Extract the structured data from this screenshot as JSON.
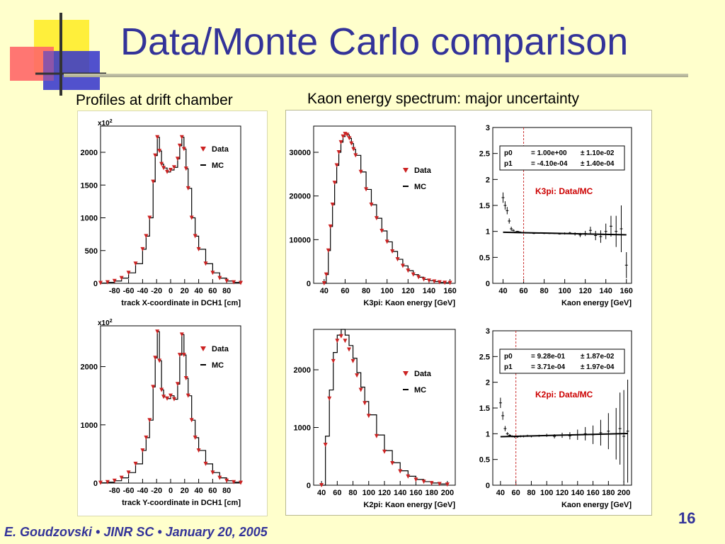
{
  "slide": {
    "title": "Data/Monte Carlo comparison",
    "left_heading": "Profiles at drift chamber",
    "right_heading": "Kaon energy spectrum: major uncertainty",
    "footer": "E. Goudzovski • JINR SC • January 20, 2005",
    "number": "16",
    "colors": {
      "background": "#ffffcc",
      "title": "#333399",
      "data_marker": "#cc2222",
      "mc_line": "#000000",
      "ratio_label": "#cc0000"
    }
  },
  "chart_data": [
    {
      "type": "line",
      "id": "x-profile",
      "xlabel": "track X-coordinate in DCH1 [cm]",
      "exponent": "x10",
      "xlim": [
        -100,
        100
      ],
      "ylim": [
        0,
        2400
      ],
      "xticks": [
        -80,
        -60,
        -40,
        -20,
        0,
        20,
        40,
        60,
        80
      ],
      "yticks": [
        0,
        500,
        1000,
        1500,
        2000
      ],
      "legend": [
        "Data",
        "MC"
      ],
      "x": [
        -100,
        -90,
        -80,
        -70,
        -60,
        -50,
        -40,
        -35,
        -30,
        -25,
        -22,
        -19,
        -16,
        -13,
        -10,
        -5,
        0,
        5,
        10,
        13,
        16,
        19,
        22,
        25,
        30,
        35,
        40,
        50,
        60,
        70,
        80,
        90,
        100
      ],
      "series": [
        {
          "name": "Data",
          "values": [
            5,
            15,
            35,
            80,
            160,
            300,
            520,
            720,
            1000,
            1550,
            1950,
            2230,
            2020,
            1820,
            1760,
            1700,
            1730,
            1770,
            1900,
            2100,
            2230,
            2050,
            1750,
            1450,
            1000,
            720,
            520,
            300,
            160,
            80,
            35,
            15,
            5
          ]
        },
        {
          "name": "MC",
          "values": [
            5,
            15,
            35,
            80,
            160,
            300,
            520,
            720,
            1000,
            1550,
            1950,
            2230,
            2020,
            1820,
            1760,
            1700,
            1730,
            1770,
            1900,
            2100,
            2230,
            2050,
            1750,
            1450,
            1000,
            720,
            520,
            300,
            160,
            80,
            35,
            15,
            5
          ]
        }
      ]
    },
    {
      "type": "line",
      "id": "y-profile",
      "xlabel": "track Y-coordinate in DCH1 [cm]",
      "exponent": "x10",
      "xlim": [
        -100,
        100
      ],
      "ylim": [
        0,
        2700
      ],
      "xticks": [
        -80,
        -60,
        -40,
        -20,
        0,
        20,
        40,
        60,
        80
      ],
      "yticks": [
        0,
        1000,
        2000
      ],
      "legend": [
        "Data",
        "MC"
      ],
      "x": [
        -100,
        -90,
        -80,
        -70,
        -60,
        -50,
        -40,
        -35,
        -30,
        -25,
        -22,
        -19,
        -16,
        -13,
        -10,
        -5,
        0,
        5,
        10,
        13,
        16,
        19,
        22,
        25,
        30,
        35,
        40,
        50,
        60,
        70,
        80,
        90,
        100
      ],
      "series": [
        {
          "name": "Data",
          "values": [
            5,
            15,
            40,
            90,
            180,
            330,
            560,
            780,
            1080,
            1650,
            2150,
            2600,
            2100,
            1600,
            1480,
            1450,
            1500,
            1440,
            1700,
            2200,
            2550,
            2200,
            1800,
            1500,
            1080,
            780,
            560,
            330,
            180,
            90,
            40,
            15,
            5
          ]
        },
        {
          "name": "MC",
          "values": [
            5,
            15,
            40,
            90,
            180,
            330,
            560,
            780,
            1080,
            1650,
            2150,
            2600,
            2100,
            1600,
            1480,
            1450,
            1500,
            1440,
            1700,
            2200,
            2550,
            2200,
            1800,
            1500,
            1080,
            780,
            560,
            330,
            180,
            90,
            40,
            15,
            5
          ]
        }
      ]
    },
    {
      "type": "line",
      "id": "k3pi-spectrum",
      "xlabel": "K3pi: Kaon energy [GeV]",
      "xlim": [
        30,
        165
      ],
      "ylim": [
        0,
        36000
      ],
      "xticks": [
        40,
        60,
        80,
        100,
        120,
        140,
        160
      ],
      "yticks": [
        0,
        10000,
        20000,
        30000
      ],
      "legend": [
        "Data",
        "MC"
      ],
      "x": [
        40,
        42,
        44,
        46,
        48,
        50,
        52,
        54,
        56,
        58,
        60,
        62,
        64,
        66,
        68,
        70,
        75,
        80,
        85,
        90,
        95,
        100,
        105,
        110,
        115,
        120,
        125,
        130,
        135,
        140,
        145,
        150,
        155,
        160
      ],
      "series": [
        {
          "name": "Data",
          "values": [
            0,
            2000,
            7500,
            13000,
            18000,
            23000,
            27000,
            30000,
            32300,
            33600,
            34200,
            34000,
            33200,
            32000,
            30700,
            29300,
            25500,
            21500,
            18000,
            14900,
            12000,
            9500,
            7300,
            5500,
            4000,
            2900,
            2000,
            1400,
            900,
            600,
            400,
            230,
            130,
            80
          ]
        },
        {
          "name": "MC",
          "values": [
            0,
            2000,
            7500,
            13000,
            18000,
            23000,
            27000,
            30000,
            32300,
            33600,
            34200,
            34000,
            33200,
            32000,
            30700,
            29300,
            25500,
            21500,
            18000,
            14900,
            12000,
            9500,
            7300,
            5500,
            4000,
            2900,
            2000,
            1400,
            900,
            600,
            400,
            230,
            130,
            80
          ]
        }
      ]
    },
    {
      "type": "scatter",
      "id": "k3pi-ratio",
      "xlabel": "Kaon energy [GeV]",
      "annotation": "K3pi: Data/MC",
      "fit": [
        {
          "name": "p0",
          "value": "= 1.00e+00",
          "error": "1.10e-02"
        },
        {
          "name": "p1",
          "value": "= -4.10e-04",
          "error": "1.40e-04"
        }
      ],
      "cut": 60,
      "xlim": [
        30,
        165
      ],
      "ylim": [
        0,
        3
      ],
      "xticks": [
        40,
        60,
        80,
        100,
        120,
        140,
        160
      ],
      "yticks": [
        0,
        0.5,
        1,
        1.5,
        2,
        2.5,
        3
      ],
      "ytick_labels": [
        "0",
        "0.5",
        "1",
        "1.5",
        "2",
        "2.5",
        "3"
      ],
      "x": [
        40,
        42,
        44,
        46,
        48,
        50,
        52,
        54,
        56,
        58,
        60,
        62,
        66,
        70,
        75,
        80,
        85,
        90,
        95,
        100,
        105,
        110,
        115,
        120,
        125,
        130,
        135,
        140,
        145,
        150,
        155,
        160
      ],
      "y": [
        1.65,
        1.5,
        1.4,
        1.2,
        1.05,
        1.02,
        0.99,
        1.0,
        0.99,
        0.98,
        0.98,
        0.97,
        0.97,
        0.96,
        0.97,
        0.96,
        0.96,
        0.96,
        0.95,
        0.96,
        0.97,
        0.95,
        0.93,
        0.96,
        1.02,
        0.92,
        0.9,
        1.0,
        1.1,
        1.0,
        1.05,
        0.35
      ],
      "yerr": [
        0.1,
        0.08,
        0.07,
        0.05,
        0.04,
        0.02,
        0.01,
        0.01,
        0.01,
        0.01,
        0.01,
        0.01,
        0.01,
        0.01,
        0.01,
        0.01,
        0.01,
        0.01,
        0.01,
        0.02,
        0.02,
        0.03,
        0.04,
        0.05,
        0.07,
        0.09,
        0.12,
        0.15,
        0.2,
        0.3,
        0.45,
        0.25
      ],
      "fit_line": [
        [
          40,
          0.984
        ],
        [
          160,
          0.934
        ]
      ]
    },
    {
      "type": "line",
      "id": "k2pi-spectrum",
      "xlabel": "K2pi: Kaon energy [GeV]",
      "xlim": [
        30,
        210
      ],
      "ylim": [
        0,
        2700
      ],
      "xticks": [
        40,
        60,
        80,
        100,
        120,
        140,
        160,
        180,
        200
      ],
      "yticks": [
        0,
        1000,
        2000
      ],
      "legend": [
        "Data",
        "MC"
      ],
      "x": [
        40,
        45,
        50,
        55,
        60,
        65,
        70,
        75,
        80,
        85,
        90,
        95,
        100,
        110,
        120,
        130,
        140,
        150,
        160,
        170,
        180,
        190,
        200
      ],
      "series": [
        {
          "name": "Data",
          "values": [
            0,
            700,
            1500,
            2150,
            2500,
            2580,
            2500,
            2350,
            2150,
            1900,
            1650,
            1420,
            1200,
            850,
            580,
            380,
            240,
            150,
            95,
            60,
            35,
            20,
            10
          ]
        },
        {
          "name": "MC",
          "values": [
            0,
            850,
            1650,
            2300,
            2600,
            2700,
            2600,
            2420,
            2200,
            1950,
            1700,
            1450,
            1220,
            870,
            600,
            390,
            250,
            155,
            100,
            62,
            38,
            22,
            12
          ]
        }
      ]
    },
    {
      "type": "scatter",
      "id": "k2pi-ratio",
      "xlabel": "Kaon energy [GeV]",
      "annotation": "K2pi: Data/MC",
      "fit": [
        {
          "name": "p0",
          "value": "= 9.28e-01",
          "error": "1.87e-02"
        },
        {
          "name": "p1",
          "value": "= 3.71e-04",
          "error": "1.97e-04"
        }
      ],
      "cut": 60,
      "xlim": [
        30,
        210
      ],
      "ylim": [
        0,
        3
      ],
      "xticks": [
        40,
        60,
        80,
        100,
        120,
        140,
        160,
        180,
        200
      ],
      "yticks": [
        0,
        0.5,
        1,
        1.5,
        2,
        2.5,
        3
      ],
      "ytick_labels": [
        "0",
        "0.5",
        "1",
        "1.5",
        "2",
        "2.5",
        "3"
      ],
      "x": [
        40,
        43,
        46,
        49,
        52,
        55,
        58,
        62,
        66,
        70,
        75,
        80,
        90,
        100,
        110,
        120,
        130,
        140,
        150,
        160,
        170,
        180,
        190,
        195,
        200,
        205
      ],
      "y": [
        1.6,
        1.35,
        1.1,
        1.0,
        0.97,
        0.95,
        0.94,
        0.94,
        0.95,
        0.95,
        0.96,
        0.95,
        0.96,
        0.97,
        0.95,
        0.97,
        0.96,
        0.98,
        1.0,
        0.98,
        1.02,
        1.05,
        1.0,
        1.1,
        0.95,
        1.05
      ],
      "yerr": [
        0.1,
        0.08,
        0.05,
        0.03,
        0.02,
        0.02,
        0.02,
        0.02,
        0.02,
        0.02,
        0.02,
        0.02,
        0.02,
        0.03,
        0.04,
        0.05,
        0.07,
        0.1,
        0.13,
        0.18,
        0.25,
        0.35,
        0.5,
        0.7,
        0.9,
        1.0
      ],
      "fit_line": [
        [
          40,
          0.943
        ],
        [
          205,
          1.004
        ]
      ]
    }
  ]
}
